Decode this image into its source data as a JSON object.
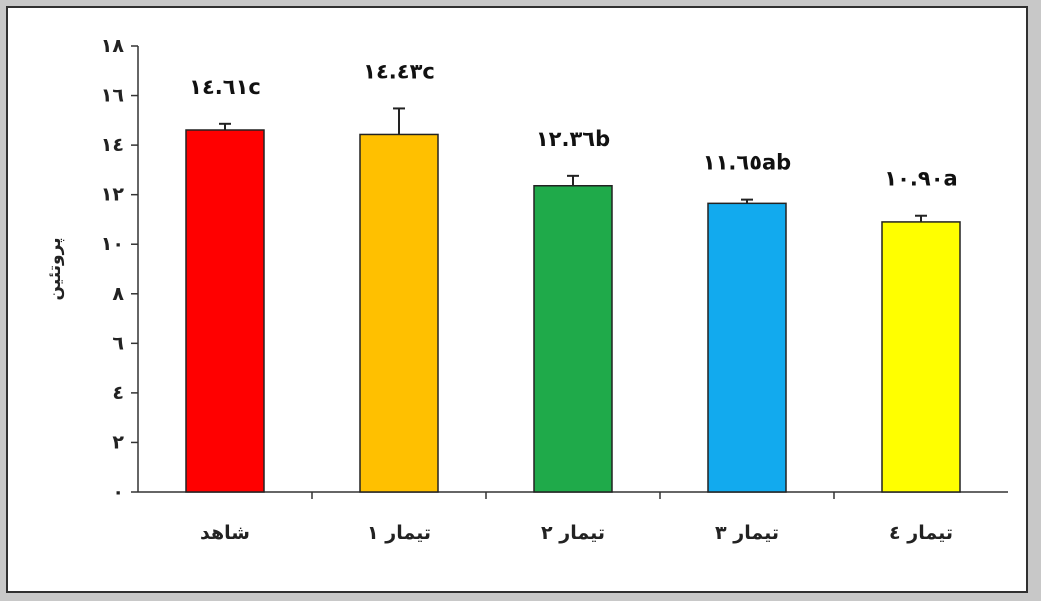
{
  "chart_data": {
    "type": "bar",
    "categories": [
      "شاهد",
      "تیمار ۱",
      "تیمار ۲",
      "تیمار ۳",
      "تیمار ٤"
    ],
    "values": [
      14.61,
      14.43,
      12.36,
      11.65,
      10.9
    ],
    "error": [
      0.25,
      1.05,
      0.4,
      0.15,
      0.25
    ],
    "data_labels": [
      "١٤.٦١c",
      "١٤.٤٣c",
      "١٢.٣٦b",
      "١١.٦٥ab",
      "١٠.٩٠a"
    ],
    "colors": [
      "#ff0000",
      "#ffc000",
      "#1faa4a",
      "#12aaee",
      "#ffff00"
    ],
    "ylabel": "پروتئین",
    "xlabel": "",
    "title": "",
    "ylim": [
      0,
      18
    ],
    "yticks": [
      0,
      2,
      4,
      6,
      8,
      10,
      12,
      14,
      16,
      18
    ],
    "ytick_labels": [
      "٠",
      "٢",
      "٤",
      "٦",
      "٨",
      "١٠",
      "١٢",
      "١٤",
      "١٦",
      "١٨"
    ],
    "grid": false,
    "legend": "none"
  }
}
